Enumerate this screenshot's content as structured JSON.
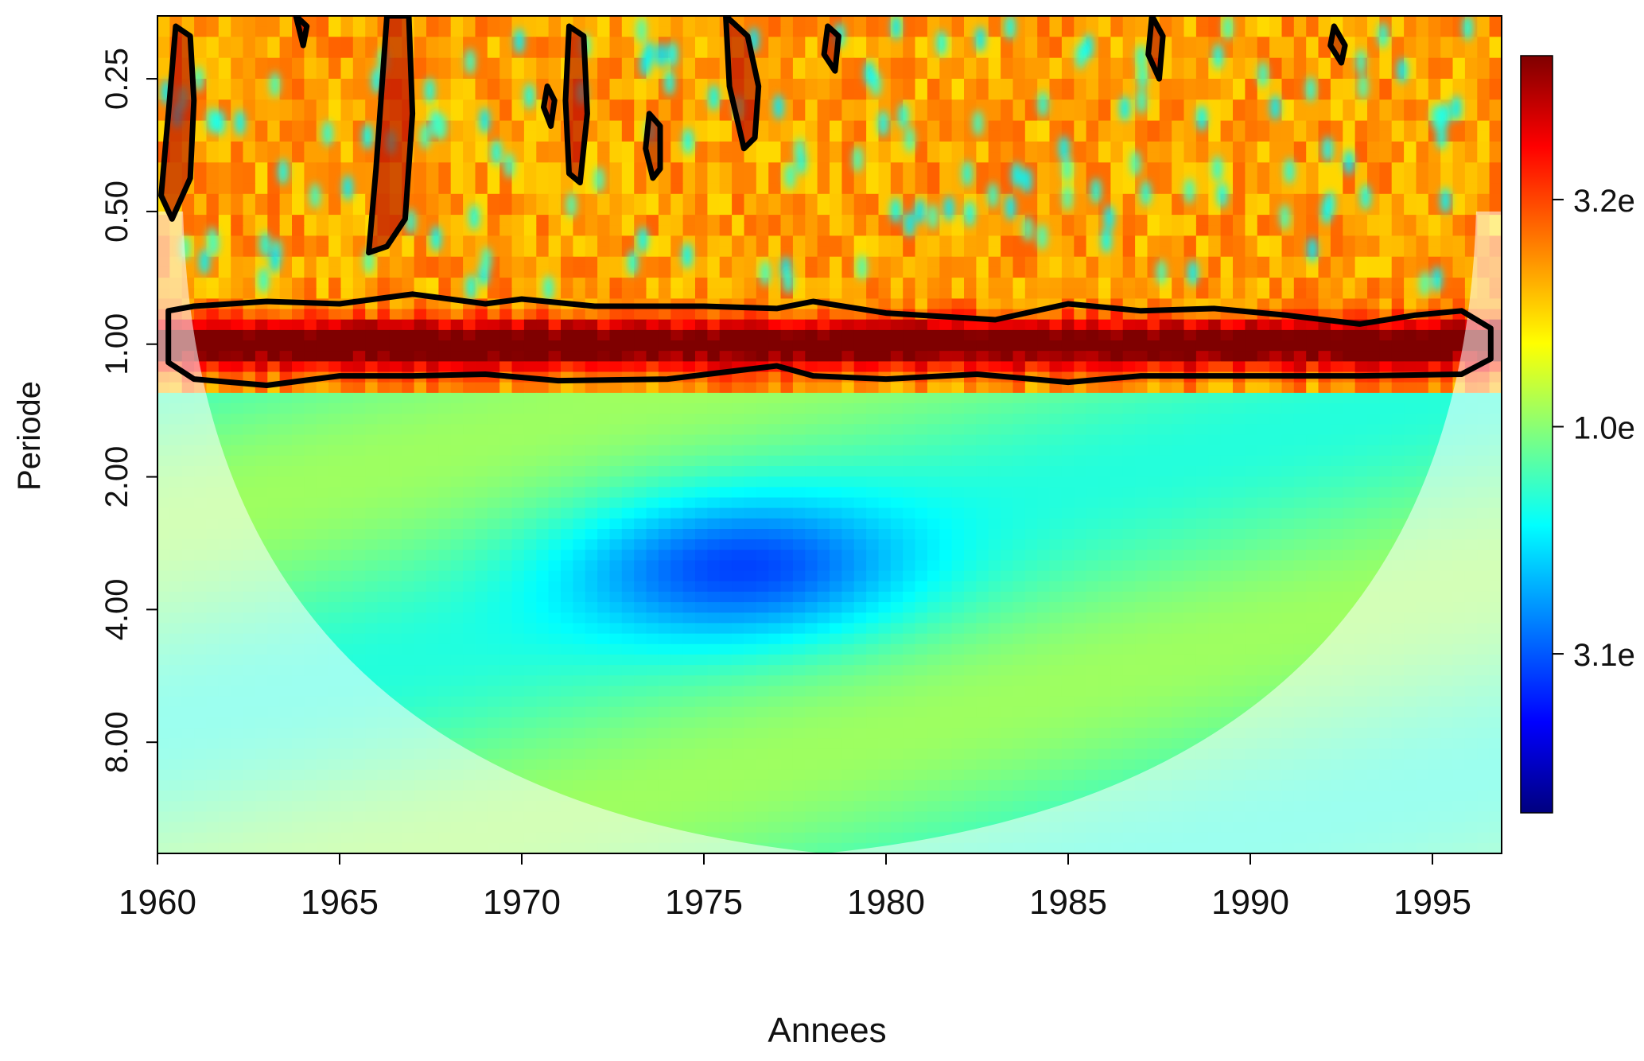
{
  "chart_data": {
    "type": "heatmap",
    "title": "",
    "xlabel": "Annees",
    "ylabel": "Periode",
    "x_ticks": [
      "1960",
      "1965",
      "1970",
      "1975",
      "1980",
      "1985",
      "1990",
      "1995"
    ],
    "x_tick_values": [
      1960,
      1965,
      1970,
      1975,
      1980,
      1985,
      1990,
      1995
    ],
    "xlim": [
      1960,
      1996.9
    ],
    "y_ticks": [
      "0.25",
      "0.50",
      "1.00",
      "2.00",
      "4.00",
      "8.00"
    ],
    "y_tick_values": [
      0.25,
      0.5,
      1,
      2,
      4,
      8
    ],
    "ylim": [
      0.18,
      14.3
    ],
    "y_scale": "log2",
    "y_direction": "reversed",
    "colorbar": {
      "ticks": [
        "3.2e",
        "1.0e",
        "3.1e"
      ],
      "placement": "right",
      "low_color": "#00007f",
      "high_color": "#7f0000"
    },
    "colormap": [
      "#00007f",
      "#0000ff",
      "#007fff",
      "#00ffff",
      "#7fff7f",
      "#ffff00",
      "#ff7f00",
      "#ff0000",
      "#7f0000"
    ],
    "cone_of_influence": {
      "color": "#ffffff",
      "apex": [
        1978.3,
        14.3
      ],
      "left_edge": [
        1960.7,
        0.5
      ],
      "right_edge": [
        1996.2,
        0.5
      ]
    },
    "features": {
      "annual_band_period": 1.0,
      "annual_band_range": [
        0.8,
        1.25
      ],
      "high_power_band_range": [
        0.18,
        1.3
      ],
      "low_power_center": [
        1976.0,
        3.2
      ]
    },
    "significance_contours": [
      {
        "x": [
          1960.5,
          1960.9,
          1961.0,
          1960.9,
          1960.4,
          1960.1,
          1960.3,
          1960.5
        ],
        "y": [
          0.19,
          0.2,
          0.28,
          0.42,
          0.52,
          0.46,
          0.3,
          0.19
        ]
      },
      {
        "x": [
          1966.3,
          1966.9,
          1967.0,
          1966.8,
          1966.3,
          1965.8,
          1966.0,
          1966.3
        ],
        "y": [
          0.18,
          0.18,
          0.3,
          0.52,
          0.6,
          0.62,
          0.4,
          0.18
        ]
      },
      {
        "x": [
          1971.3,
          1971.7,
          1971.8,
          1971.6,
          1971.3,
          1971.2,
          1971.3
        ],
        "y": [
          0.19,
          0.2,
          0.3,
          0.43,
          0.41,
          0.28,
          0.19
        ]
      },
      {
        "x": [
          1970.7,
          1970.9,
          1970.8,
          1970.6,
          1970.7
        ],
        "y": [
          0.26,
          0.28,
          0.32,
          0.29,
          0.26
        ]
      },
      {
        "x": [
          1973.5,
          1973.8,
          1973.8,
          1973.6,
          1973.4,
          1973.5
        ],
        "y": [
          0.3,
          0.32,
          0.4,
          0.42,
          0.36,
          0.3
        ]
      },
      {
        "x": [
          1975.6,
          1976.2,
          1976.5,
          1976.4,
          1976.1,
          1975.7,
          1975.6
        ],
        "y": [
          0.18,
          0.2,
          0.26,
          0.34,
          0.36,
          0.26,
          0.18
        ]
      },
      {
        "x": [
          1978.4,
          1978.7,
          1978.6,
          1978.3,
          1978.4
        ],
        "y": [
          0.19,
          0.2,
          0.24,
          0.22,
          0.19
        ]
      },
      {
        "x": [
          1987.3,
          1987.6,
          1987.5,
          1987.2,
          1987.3
        ],
        "y": [
          0.18,
          0.2,
          0.25,
          0.22,
          0.18
        ]
      },
      {
        "x": [
          1992.3,
          1992.6,
          1992.5,
          1992.2,
          1992.3
        ],
        "y": [
          0.19,
          0.21,
          0.23,
          0.21,
          0.19
        ]
      },
      {
        "x": [
          1963.8,
          1964.1,
          1964.0,
          1963.8
        ],
        "y": [
          0.18,
          0.19,
          0.21,
          0.18
        ]
      },
      {
        "x": [
          1960.3,
          1961.0,
          1963.0,
          1965.0,
          1967.0,
          1969.0,
          1970.0,
          1972.0,
          1975.0,
          1977.0,
          1978.0,
          1980.0,
          1983.0,
          1985.0,
          1987.0,
          1989.0,
          1991.0,
          1993.0,
          1994.5,
          1995.8,
          1996.6,
          1996.6,
          1995.8,
          1993.0,
          1990.0,
          1987.0,
          1985.0,
          1982.5,
          1980.0,
          1978.0,
          1977.0,
          1974.0,
          1971.0,
          1969.0,
          1967.0,
          1965.0,
          1963.0,
          1961.0,
          1960.3
        ],
        "y": [
          0.84,
          0.82,
          0.8,
          0.81,
          0.77,
          0.81,
          0.79,
          0.82,
          0.82,
          0.83,
          0.8,
          0.85,
          0.88,
          0.81,
          0.84,
          0.83,
          0.86,
          0.9,
          0.86,
          0.84,
          0.92,
          1.08,
          1.17,
          1.18,
          1.18,
          1.18,
          1.22,
          1.17,
          1.2,
          1.18,
          1.12,
          1.2,
          1.21,
          1.17,
          1.18,
          1.18,
          1.24,
          1.2,
          1.1
        ]
      }
    ]
  }
}
